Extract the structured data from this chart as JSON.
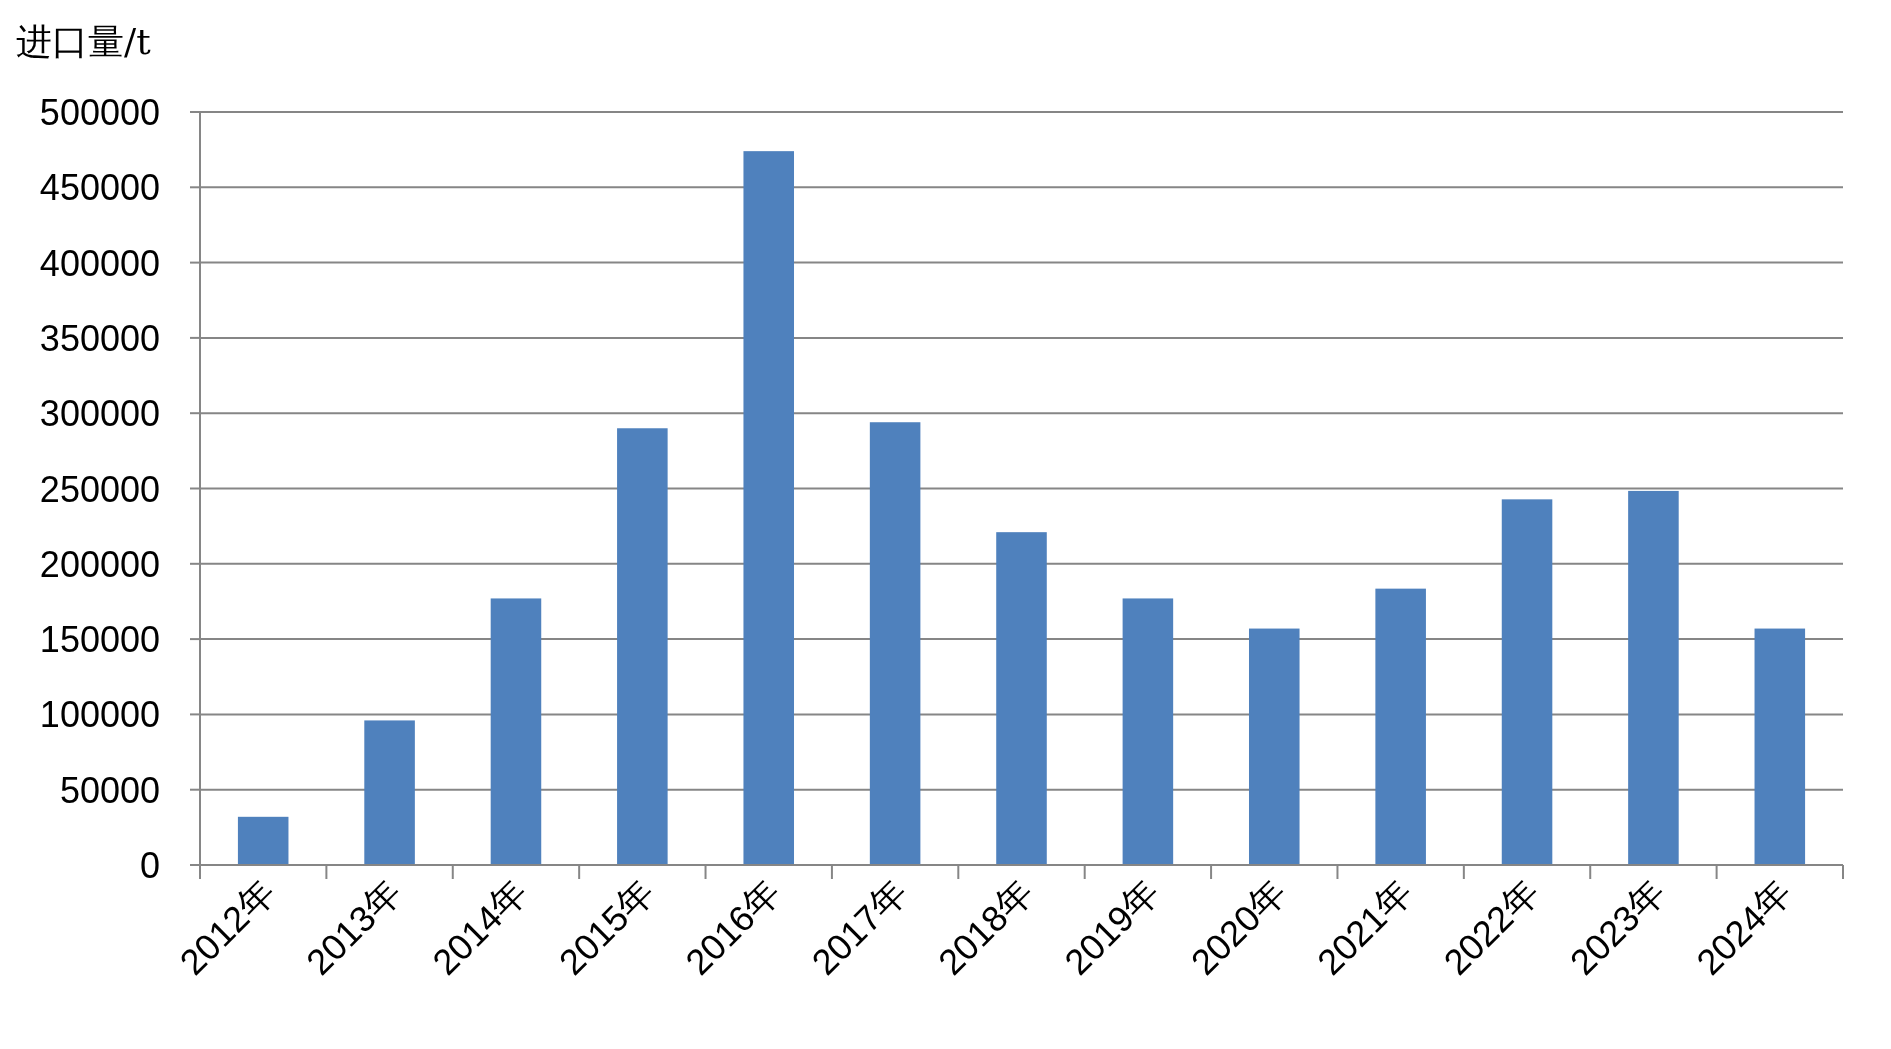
{
  "chart_data": {
    "type": "bar",
    "ylabel": "进口量/t",
    "categories": [
      "2012年",
      "2013年",
      "2014年",
      "2015年",
      "2016年",
      "2017年",
      "2018年",
      "2019年",
      "2020年",
      "2021年",
      "2022年",
      "2023年",
      "2024年"
    ],
    "series": [
      {
        "color": "#4f81bd",
        "values": [
          32000,
          96000,
          177000,
          290000,
          474000,
          294000,
          221000,
          177000,
          157000,
          183500,
          242800,
          248400,
          157000
        ]
      }
    ],
    "ylim": [
      0,
      500000
    ],
    "yticks": [
      0,
      50000,
      100000,
      150000,
      200000,
      250000,
      300000,
      350000,
      400000,
      450000,
      500000
    ],
    "grid": "y"
  }
}
